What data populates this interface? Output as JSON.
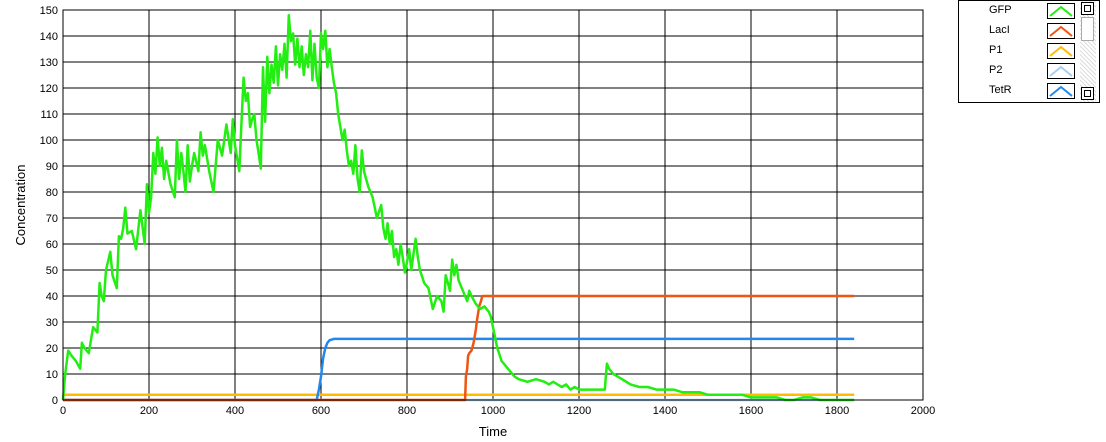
{
  "chart_data": {
    "type": "line",
    "title": "",
    "xlabel": "Time",
    "ylabel": "Concentration",
    "xlim": [
      0,
      2000
    ],
    "ylim": [
      0,
      150
    ],
    "xticks": [
      0,
      200,
      400,
      600,
      800,
      1000,
      1200,
      1400,
      1600,
      1800,
      2000
    ],
    "yticks": [
      0,
      10,
      20,
      30,
      40,
      50,
      60,
      70,
      80,
      90,
      100,
      110,
      120,
      130,
      140,
      150
    ],
    "grid": true,
    "legend_position": "top-right (outside)",
    "series": [
      {
        "name": "GFP",
        "color": "#22ee11",
        "points": [
          [
            0,
            0
          ],
          [
            5,
            10
          ],
          [
            12,
            19
          ],
          [
            20,
            17
          ],
          [
            30,
            15
          ],
          [
            40,
            12
          ],
          [
            44,
            22
          ],
          [
            50,
            20
          ],
          [
            60,
            18
          ],
          [
            70,
            28
          ],
          [
            80,
            26
          ],
          [
            85,
            45
          ],
          [
            90,
            40
          ],
          [
            95,
            38
          ],
          [
            100,
            50
          ],
          [
            110,
            57
          ],
          [
            115,
            48
          ],
          [
            125,
            43
          ],
          [
            130,
            63
          ],
          [
            135,
            62
          ],
          [
            140,
            66
          ],
          [
            145,
            74
          ],
          [
            150,
            64
          ],
          [
            160,
            65
          ],
          [
            170,
            58
          ],
          [
            180,
            73
          ],
          [
            190,
            60
          ],
          [
            195,
            83
          ],
          [
            200,
            72
          ],
          [
            205,
            78
          ],
          [
            210,
            95
          ],
          [
            215,
            87
          ],
          [
            220,
            101
          ],
          [
            225,
            90
          ],
          [
            230,
            97
          ],
          [
            235,
            85
          ],
          [
            240,
            92
          ],
          [
            250,
            83
          ],
          [
            260,
            78
          ],
          [
            265,
            100
          ],
          [
            270,
            85
          ],
          [
            275,
            95
          ],
          [
            280,
            88
          ],
          [
            285,
            80
          ],
          [
            290,
            98
          ],
          [
            295,
            84
          ],
          [
            300,
            90
          ],
          [
            305,
            95
          ],
          [
            315,
            88
          ],
          [
            320,
            103
          ],
          [
            325,
            94
          ],
          [
            330,
            98
          ],
          [
            340,
            88
          ],
          [
            350,
            80
          ],
          [
            360,
            100
          ],
          [
            370,
            94
          ],
          [
            380,
            106
          ],
          [
            390,
            95
          ],
          [
            395,
            108
          ],
          [
            400,
            98
          ],
          [
            410,
            88
          ],
          [
            415,
            106
          ],
          [
            420,
            124
          ],
          [
            425,
            115
          ],
          [
            430,
            118
          ],
          [
            435,
            105
          ],
          [
            440,
            108
          ],
          [
            445,
            110
          ],
          [
            450,
            100
          ],
          [
            455,
            95
          ],
          [
            460,
            89
          ],
          [
            465,
            128
          ],
          [
            470,
            107
          ],
          [
            475,
            132
          ],
          [
            480,
            118
          ],
          [
            485,
            129
          ],
          [
            490,
            122
          ],
          [
            495,
            136
          ],
          [
            500,
            121
          ],
          [
            505,
            133
          ],
          [
            510,
            127
          ],
          [
            515,
            137
          ],
          [
            520,
            124
          ],
          [
            525,
            148
          ],
          [
            530,
            138
          ],
          [
            535,
            141
          ],
          [
            540,
            129
          ],
          [
            545,
            139
          ],
          [
            550,
            128
          ],
          [
            555,
            136
          ],
          [
            560,
            125
          ],
          [
            565,
            133
          ],
          [
            570,
            128
          ],
          [
            575,
            142
          ],
          [
            580,
            123
          ],
          [
            585,
            137
          ],
          [
            590,
            124
          ],
          [
            595,
            120
          ],
          [
            600,
            141
          ],
          [
            605,
            135
          ],
          [
            610,
            142
          ],
          [
            615,
            128
          ],
          [
            620,
            135
          ],
          [
            625,
            128
          ],
          [
            630,
            122
          ],
          [
            635,
            118
          ],
          [
            640,
            110
          ],
          [
            650,
            100
          ],
          [
            655,
            104
          ],
          [
            660,
            96
          ],
          [
            665,
            90
          ],
          [
            670,
            92
          ],
          [
            675,
            87
          ],
          [
            680,
            98
          ],
          [
            685,
            85
          ],
          [
            690,
            80
          ],
          [
            695,
            96
          ],
          [
            700,
            88
          ],
          [
            705,
            85
          ],
          [
            710,
            82
          ],
          [
            720,
            78
          ],
          [
            730,
            70
          ],
          [
            740,
            75
          ],
          [
            745,
            66
          ],
          [
            750,
            62
          ],
          [
            755,
            68
          ],
          [
            760,
            60
          ],
          [
            765,
            65
          ],
          [
            770,
            55
          ],
          [
            775,
            58
          ],
          [
            780,
            52
          ],
          [
            785,
            60
          ],
          [
            790,
            55
          ],
          [
            795,
            49
          ],
          [
            800,
            53
          ],
          [
            805,
            58
          ],
          [
            810,
            50
          ],
          [
            815,
            56
          ],
          [
            820,
            62
          ],
          [
            825,
            55
          ],
          [
            830,
            50
          ],
          [
            840,
            45
          ],
          [
            850,
            43
          ],
          [
            860,
            35
          ],
          [
            870,
            40
          ],
          [
            880,
            38
          ],
          [
            885,
            34
          ],
          [
            890,
            48
          ],
          [
            895,
            45
          ],
          [
            900,
            42
          ],
          [
            905,
            54
          ],
          [
            910,
            48
          ],
          [
            915,
            52
          ],
          [
            920,
            46
          ],
          [
            930,
            42
          ],
          [
            940,
            38
          ],
          [
            945,
            42
          ],
          [
            950,
            40
          ],
          [
            960,
            37
          ],
          [
            970,
            35
          ],
          [
            980,
            36
          ],
          [
            990,
            34
          ],
          [
            995,
            32
          ],
          [
            1000,
            28
          ],
          [
            1005,
            24
          ],
          [
            1010,
            20
          ],
          [
            1020,
            15
          ],
          [
            1030,
            13
          ],
          [
            1040,
            11
          ],
          [
            1050,
            9
          ],
          [
            1060,
            8
          ],
          [
            1080,
            7
          ],
          [
            1100,
            8
          ],
          [
            1120,
            7
          ],
          [
            1130,
            6
          ],
          [
            1140,
            7
          ],
          [
            1150,
            6
          ],
          [
            1160,
            5
          ],
          [
            1170,
            6
          ],
          [
            1180,
            4
          ],
          [
            1190,
            5
          ],
          [
            1200,
            4
          ],
          [
            1220,
            4
          ],
          [
            1240,
            4
          ],
          [
            1255,
            4
          ],
          [
            1260,
            4
          ],
          [
            1265,
            14
          ],
          [
            1270,
            12
          ],
          [
            1280,
            10
          ],
          [
            1290,
            9
          ],
          [
            1300,
            8
          ],
          [
            1320,
            6
          ],
          [
            1340,
            5
          ],
          [
            1360,
            5
          ],
          [
            1380,
            4
          ],
          [
            1400,
            4
          ],
          [
            1420,
            4
          ],
          [
            1440,
            3
          ],
          [
            1460,
            3
          ],
          [
            1480,
            3
          ],
          [
            1500,
            2
          ],
          [
            1520,
            2
          ],
          [
            1540,
            2
          ],
          [
            1560,
            2
          ],
          [
            1580,
            2
          ],
          [
            1600,
            1
          ],
          [
            1620,
            1
          ],
          [
            1640,
            1
          ],
          [
            1660,
            1
          ],
          [
            1680,
            0
          ],
          [
            1700,
            0
          ],
          [
            1720,
            1
          ],
          [
            1740,
            1
          ],
          [
            1760,
            0
          ],
          [
            1780,
            0
          ],
          [
            1800,
            0
          ],
          [
            1840,
            0
          ]
        ]
      },
      {
        "name": "LacI",
        "color": "#ee5511",
        "points": [
          [
            0,
            0
          ],
          [
            935,
            0
          ],
          [
            937,
            9
          ],
          [
            940,
            12
          ],
          [
            942,
            17
          ],
          [
            945,
            18
          ],
          [
            950,
            19
          ],
          [
            955,
            22
          ],
          [
            960,
            27
          ],
          [
            963,
            31
          ],
          [
            968,
            36
          ],
          [
            972,
            38
          ],
          [
            975,
            40
          ],
          [
            1000,
            40
          ],
          [
            1840,
            40
          ]
        ]
      },
      {
        "name": "P1",
        "color": "#ffbb00",
        "points": [
          [
            0,
            2
          ],
          [
            1840,
            2
          ]
        ]
      },
      {
        "name": "P2",
        "color": "#aaccee",
        "points": [
          [
            0,
            0
          ],
          [
            1840,
            0
          ]
        ]
      },
      {
        "name": "TetR",
        "color": "#2288ee",
        "points": [
          [
            0,
            0
          ],
          [
            590,
            0
          ],
          [
            595,
            4
          ],
          [
            600,
            9
          ],
          [
            605,
            16
          ],
          [
            610,
            20
          ],
          [
            615,
            22
          ],
          [
            620,
            23
          ],
          [
            630,
            23.5
          ],
          [
            700,
            23.5
          ],
          [
            1840,
            23.5
          ]
        ]
      }
    ]
  }
}
